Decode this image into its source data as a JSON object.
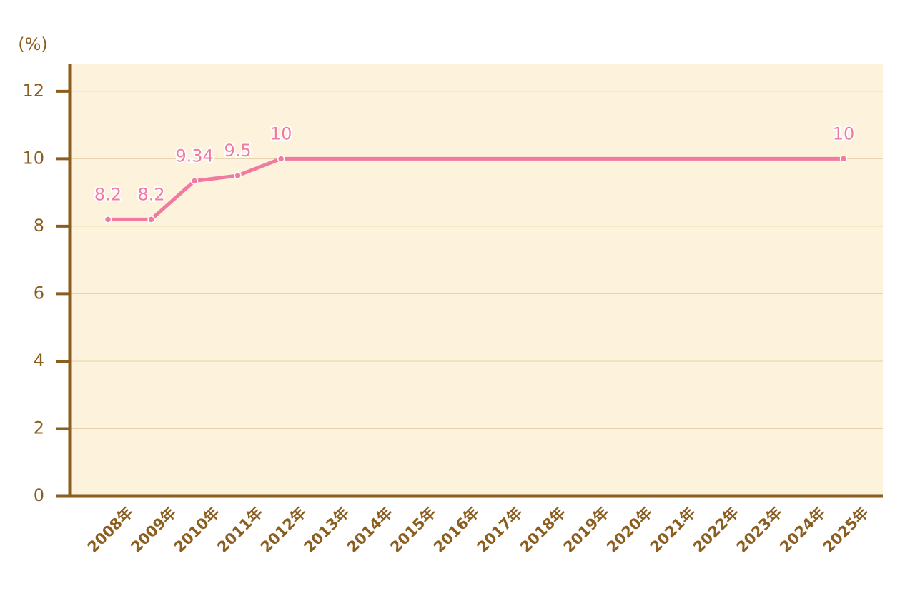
{
  "chart_data": {
    "type": "line",
    "y_axis_label": "(%)",
    "categories": [
      "2008年",
      "2009年",
      "2010年",
      "2011年",
      "2012年",
      "2013年",
      "2014年",
      "2015年",
      "2016年",
      "2017年",
      "2018年",
      "2019年",
      "2020年",
      "2021年",
      "2022年",
      "2023年",
      "2024年",
      "2025年"
    ],
    "series": [
      {
        "color": "#f07aa0",
        "values": [
          8.2,
          8.2,
          9.34,
          9.5,
          10,
          10,
          10,
          10,
          10,
          10,
          10,
          10,
          10,
          10,
          10,
          10,
          10,
          10
        ],
        "value_labels": [
          "8.2",
          "8.2",
          "9.34",
          "9.5",
          "10",
          null,
          null,
          null,
          null,
          null,
          null,
          null,
          null,
          null,
          null,
          null,
          null,
          "10"
        ]
      }
    ],
    "ylim": [
      0,
      12.8
    ],
    "yticks": [
      0,
      2,
      4,
      6,
      8,
      10,
      12
    ],
    "grid": true
  }
}
